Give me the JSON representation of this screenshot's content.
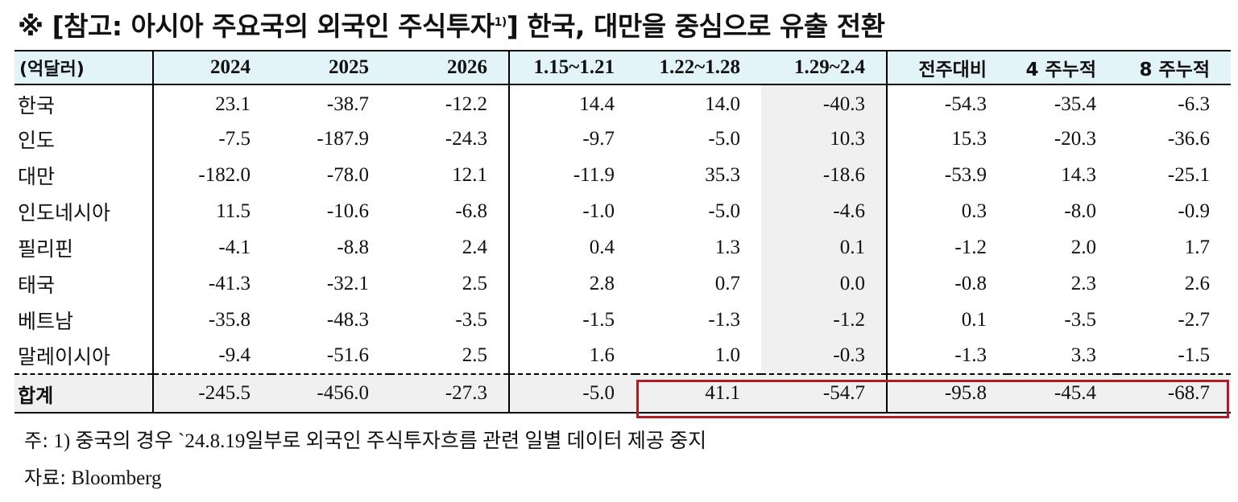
{
  "title": {
    "main": "※ [참고: 아시아 주요국의 외국인 주식투자",
    "sup": "1)",
    "rest": "] 한국, 대만을 중심으로 유출 전환"
  },
  "table": {
    "unit_label": "(억달러)",
    "headers": [
      "2024",
      "2025",
      "2026",
      "1.15~1.21",
      "1.22~1.28",
      "1.29~2.4",
      "전주대비",
      "4 주누적",
      "8 주누적"
    ],
    "rows": [
      {
        "name": "한국",
        "values": [
          "23.1",
          "-38.7",
          "-12.2",
          "14.4",
          "14.0",
          "-40.3",
          "-54.3",
          "-35.4",
          "-6.3"
        ]
      },
      {
        "name": "인도",
        "values": [
          "-7.5",
          "-187.9",
          "-24.3",
          "-9.7",
          "-5.0",
          "10.3",
          "15.3",
          "-20.3",
          "-36.6"
        ]
      },
      {
        "name": "대만",
        "values": [
          "-182.0",
          "-78.0",
          "12.1",
          "-11.9",
          "35.3",
          "-18.6",
          "-53.9",
          "14.3",
          "-25.1"
        ]
      },
      {
        "name": "인도네시아",
        "values": [
          "11.5",
          "-10.6",
          "-6.8",
          "-1.0",
          "-5.0",
          "-4.6",
          "0.3",
          "-8.0",
          "-0.9"
        ]
      },
      {
        "name": "필리핀",
        "values": [
          "-4.1",
          "-8.8",
          "2.4",
          "0.4",
          "1.3",
          "0.1",
          "-1.2",
          "2.0",
          "1.7"
        ]
      },
      {
        "name": "태국",
        "values": [
          "-41.3",
          "-32.1",
          "2.5",
          "2.8",
          "0.7",
          "0.0",
          "-0.8",
          "2.3",
          "2.6"
        ]
      },
      {
        "name": "베트남",
        "values": [
          "-35.8",
          "-48.3",
          "-3.5",
          "-1.5",
          "-1.3",
          "-1.2",
          "0.1",
          "-3.5",
          "-2.7"
        ]
      },
      {
        "name": "말레이시아",
        "values": [
          "-9.4",
          "-51.6",
          "2.5",
          "1.6",
          "1.0",
          "-0.3",
          "-1.3",
          "3.3",
          "-1.5"
        ]
      }
    ],
    "total": {
      "name": "합계",
      "values": [
        "-245.5",
        "-456.0",
        "-27.3",
        "-5.0",
        "41.1",
        "-54.7",
        "-95.8",
        "-45.4",
        "-68.7"
      ]
    }
  },
  "notes": {
    "note1_prefix": "주:",
    "note1_text": " 1) 중국의 경우 `24.8.19일부로 외국인 주식투자흐름 관련 일별 데이터 제공 중지",
    "source_prefix": "자료:",
    "source_text": " Bloomberg"
  },
  "colors": {
    "header_bg": "#e3f4f8",
    "shade": "#f0f0f0",
    "highlight_border": "#b01c24"
  }
}
